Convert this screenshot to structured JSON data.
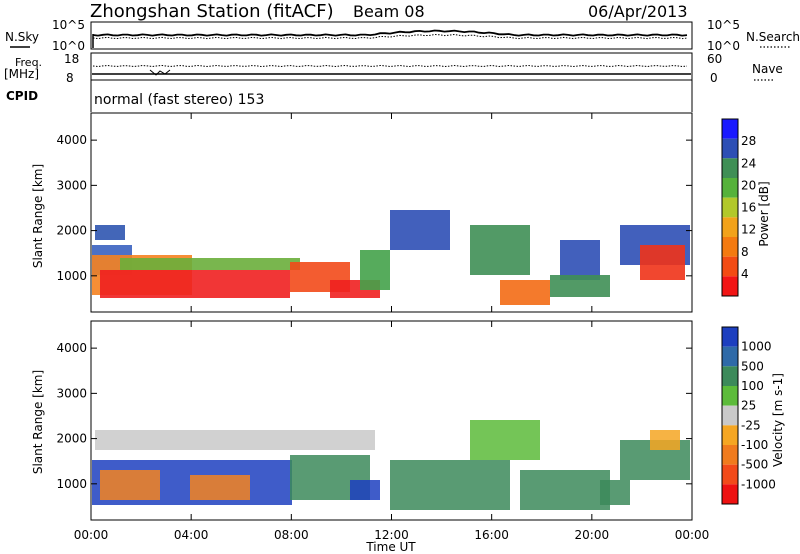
{
  "header": {
    "station": "Zhongshan Station (fitACF)",
    "beam": "Beam 08",
    "date": "06/Apr/2013"
  },
  "panels": {
    "nsky_label": "N.Sky",
    "nsky_top": "10^5",
    "nsky_bottom": "10^0",
    "nsearch_label": "N.Search",
    "nsearch_top": "10^5",
    "nsearch_bottom": "10^0",
    "freq_label_line1": "Freq.",
    "freq_label_line2": "[MHz]",
    "freq_top": "18",
    "freq_bottom": "8",
    "nave_label": "Nave",
    "nave_top": "60",
    "nave_bottom": "0",
    "cpid_label": "CPID",
    "cpid_text": "normal (fast stereo) 153"
  },
  "chart_data": [
    {
      "type": "heatmap",
      "name": "power",
      "ylabel": "Slant Range [km]",
      "yticks": [
        "1000",
        "2000",
        "3000",
        "4000"
      ],
      "ylim": [
        200,
        4600
      ],
      "colorbar_label": "Power [dB]",
      "colorbar_ticks": [
        "4",
        "8",
        "12",
        "16",
        "20",
        "24",
        "28"
      ],
      "colorbar_colors": [
        "#1a1aff",
        "#2d4fb5",
        "#3f8f55",
        "#55b23a",
        "#b2c82a",
        "#f2a21a",
        "#f47a10",
        "#f34b13",
        "#f21515"
      ]
    },
    {
      "type": "heatmap",
      "name": "velocity",
      "ylabel": "Slant Range [km]",
      "yticks": [
        "1000",
        "2000",
        "3000",
        "4000"
      ],
      "ylim": [
        200,
        4600
      ],
      "colorbar_label": "Velocity [m s-1]",
      "colorbar_ticks": [
        "1000",
        "500",
        "100",
        "25",
        "-25",
        "-100",
        "-500",
        "-1000"
      ],
      "colorbar_colors": [
        "#1d3fbf",
        "#2f6aa8",
        "#3c8a5a",
        "#5cbb3a",
        "#c9c9c9",
        "#f5a623",
        "#f07b1e",
        "#f24a1a",
        "#ee1111"
      ]
    }
  ],
  "xaxis": {
    "ticks": [
      "00:00",
      "04:00",
      "08:00",
      "12:00",
      "16:00",
      "20:00",
      "00:00"
    ],
    "label": "Time UT"
  }
}
